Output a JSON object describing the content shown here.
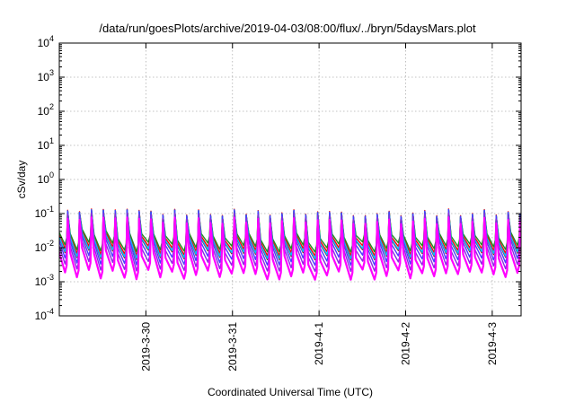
{
  "chart_data": {
    "type": "line",
    "title": "/data/run/goesPlots/archive/2019-04-03/08:00/flux/../bryn/5daysMars.plot",
    "xlabel": "Coordinated Universal Time (UTC)",
    "ylabel": "cSv/day",
    "yscale": "log",
    "grid": true,
    "legend": "none",
    "xlim": [
      "2019-03-29T00:00",
      "2019-04-03T08:00"
    ],
    "ylim": [
      0.0001,
      10000
    ],
    "x_ticks": [
      {
        "label": "2019-3-30",
        "value": "2019-03-30T00:00"
      },
      {
        "label": "2019-3-31",
        "value": "2019-03-31T00:00"
      },
      {
        "label": "2019-4-1",
        "value": "2019-04-01T00:00"
      },
      {
        "label": "2019-4-2",
        "value": "2019-04-02T00:00"
      },
      {
        "label": "2019-4-3",
        "value": "2019-04-03T00:00"
      }
    ],
    "y_ticks": [
      {
        "base": "10",
        "exp": "-4",
        "value": 0.0001
      },
      {
        "base": "10",
        "exp": "-3",
        "value": 0.001
      },
      {
        "base": "10",
        "exp": "-2",
        "value": 0.01
      },
      {
        "base": "10",
        "exp": "-1",
        "value": 0.1
      },
      {
        "base": "10",
        "exp": "0",
        "value": 1
      },
      {
        "base": "10",
        "exp": "1",
        "value": 10
      },
      {
        "base": "10",
        "exp": "2",
        "value": 100
      },
      {
        "base": "10",
        "exp": "3",
        "value": 1000
      },
      {
        "base": "10",
        "exp": "4",
        "value": 10000
      }
    ],
    "approx_period_hours": 3.3,
    "series": [
      {
        "color": "#ff0000",
        "peak": 0.105,
        "trough": 0.0085
      },
      {
        "color": "#8b1a1a",
        "peak": 0.1,
        "trough": 0.0065
      },
      {
        "color": "#228b22",
        "peak": 0.1,
        "trough": 0.011
      },
      {
        "color": "#00bfff",
        "peak": 0.1,
        "trough": 0.007
      },
      {
        "color": "#4a3cff",
        "peak": 0.1,
        "trough": 0.0045
      },
      {
        "color": "#8a2be2",
        "peak": 0.08,
        "trough": 0.003
      },
      {
        "color": "#ff00ff",
        "peak": 0.06,
        "trough": 0.0017
      }
    ]
  }
}
